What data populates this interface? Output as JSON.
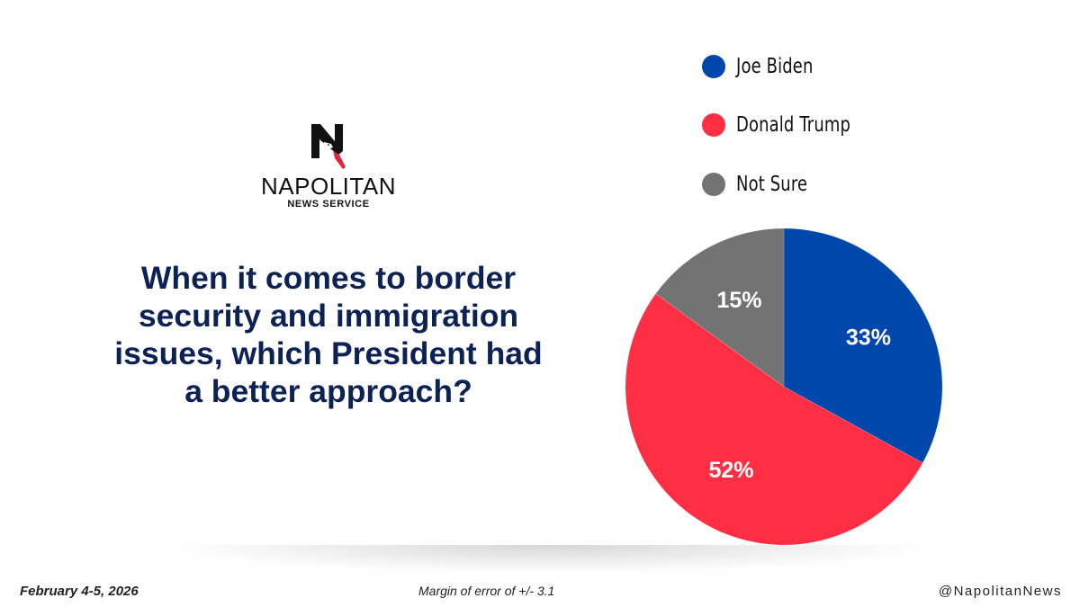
{
  "brand": {
    "name": "NAPOLITAN",
    "subtitle": "NEWS SERVICE",
    "logo_letter": "N"
  },
  "question": "When it comes to border security and immigration issues, which President had a better approach?",
  "footer": {
    "date": "February 4-5, 2026",
    "margin_of_error": "Margin of error of +/- 3.1",
    "handle": "@NapolitanNews"
  },
  "chart_data": {
    "type": "pie",
    "title": "When it comes to border security and immigration issues, which President had a better approach?",
    "legend_position": "top-right",
    "start_angle_deg": 0,
    "direction": "clockwise",
    "slices": [
      {
        "label": "Joe Biden",
        "value": 33,
        "display": "33%",
        "color": "#0047ab"
      },
      {
        "label": "Donald Trump",
        "value": 52,
        "display": "52%",
        "color": "#fe2e44"
      },
      {
        "label": "Not Sure",
        "value": 15,
        "display": "15%",
        "color": "#737373"
      }
    ]
  }
}
